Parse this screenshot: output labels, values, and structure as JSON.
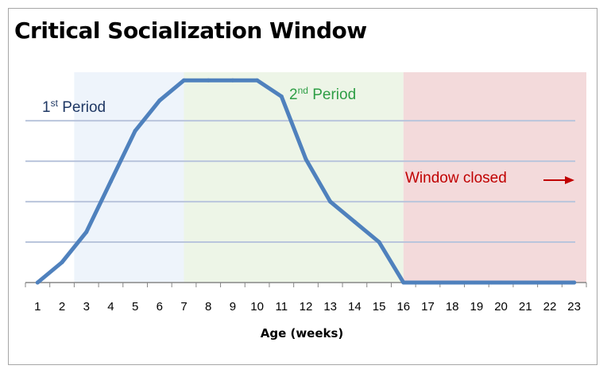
{
  "chart_data": {
    "type": "line",
    "title": "Critical Socialization Window",
    "xlabel": "Age (weeks)",
    "ylabel": "",
    "x": [
      1,
      2,
      3,
      4,
      5,
      6,
      7,
      8,
      9,
      10,
      11,
      12,
      13,
      14,
      15,
      16,
      17,
      18,
      19,
      20,
      21,
      22,
      23
    ],
    "series": [
      {
        "values": [
          0,
          0.5,
          1.25,
          2.5,
          3.75,
          4.5,
          5.0,
          5.0,
          5.0,
          5.0,
          4.6,
          3.05,
          2.0,
          1.5,
          1.0,
          0,
          0,
          0,
          0,
          0,
          0,
          0,
          0
        ],
        "color": "#4f81bd"
      }
    ],
    "ylim": [
      0,
      5.2
    ],
    "xlim": [
      0.5,
      23.5
    ],
    "grid": "horizontal",
    "gridlines": [
      1,
      2,
      3,
      4
    ],
    "regions": [
      {
        "label": "1st Period",
        "label_main": "1",
        "label_sup": "st",
        "label_rest": " Period",
        "start": 2.5,
        "end": 7.0,
        "fill": "#eef4fb",
        "text_color": "#1f3864"
      },
      {
        "label": "2nd Period",
        "label_main": "2",
        "label_sup": "nd",
        "label_rest": " Period",
        "start": 7.0,
        "end": 16.0,
        "fill": "#edf5e7",
        "text_color": "#2e9e45"
      },
      {
        "label": "Window closed",
        "label_main": "Window closed",
        "label_sup": "",
        "label_rest": "",
        "start": 16.0,
        "end": 23.5,
        "fill": "#f3dadb",
        "text_color": "#c00000"
      }
    ],
    "arrow": {
      "direction": "right",
      "color": "#c00000"
    },
    "colors": {
      "line": "#4f81bd",
      "gridline": "#b9c5dc",
      "axis": "#868686"
    }
  }
}
